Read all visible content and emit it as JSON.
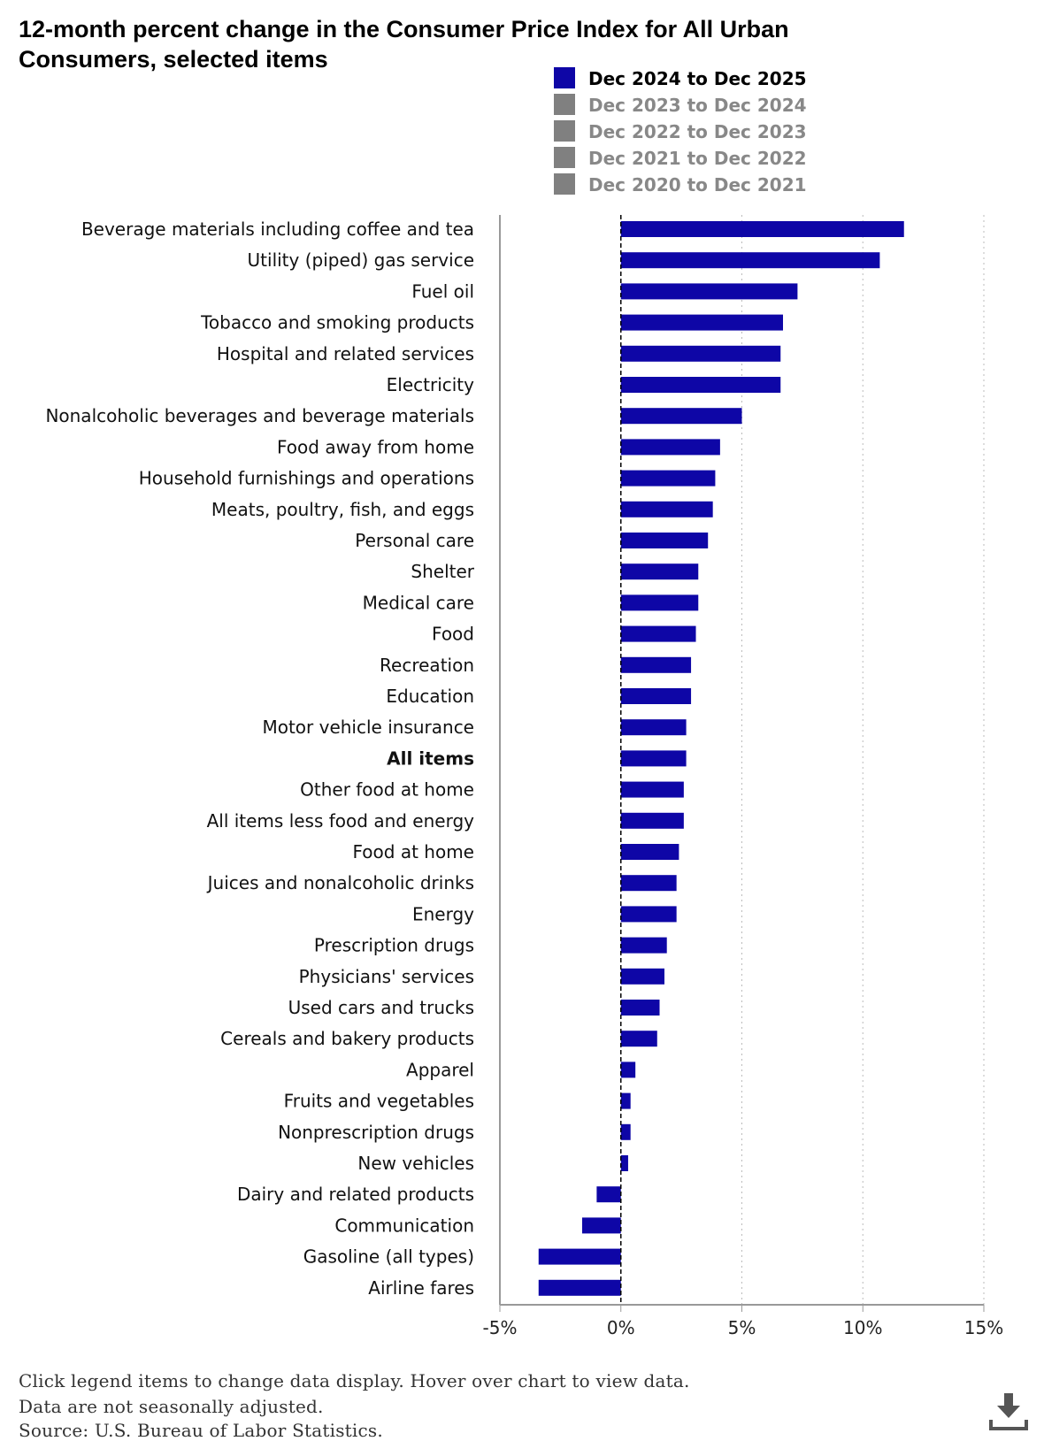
{
  "chart_data": {
    "type": "bar",
    "orientation": "horizontal",
    "title": "12-month percent change in the Consumer Price Index for All Urban Consumers, selected items",
    "legend": {
      "placement": "top-right",
      "items": [
        {
          "label": "Dec 2024 to Dec 2025",
          "color": "#0e06a6",
          "active": true
        },
        {
          "label": "Dec 2023 to Dec 2024",
          "color": "#808080",
          "active": false
        },
        {
          "label": "Dec 2022 to Dec 2023",
          "color": "#808080",
          "active": false
        },
        {
          "label": "Dec 2021 to Dec 2022",
          "color": "#808080",
          "active": false
        },
        {
          "label": "Dec 2020 to Dec 2021",
          "color": "#808080",
          "active": false
        }
      ]
    },
    "categories": [
      "Beverage materials including coffee and tea",
      "Utility (piped) gas service",
      "Fuel oil",
      "Tobacco and smoking products",
      "Hospital and related services",
      "Electricity",
      "Nonalcoholic beverages and beverage materials",
      "Food away from home",
      "Household furnishings and operations",
      "Meats, poultry, fish, and eggs",
      "Personal care",
      "Shelter",
      "Medical care",
      "Food",
      "Recreation",
      "Education",
      "Motor vehicle insurance",
      "All items",
      "Other food at home",
      "All items less food and energy",
      "Food at home",
      "Juices and nonalcoholic drinks",
      "Energy",
      "Prescription drugs",
      "Physicians' services",
      "Used cars and trucks",
      "Cereals and bakery products",
      "Apparel",
      "Fruits and vegetables",
      "Nonprescription drugs",
      "New vehicles",
      "Dairy and related products",
      "Communication",
      "Gasoline (all types)",
      "Airline fares"
    ],
    "bold_category": "All items",
    "series": [
      {
        "name": "Dec 2024 to Dec 2025",
        "values": [
          11.7,
          10.7,
          7.3,
          6.7,
          6.6,
          6.6,
          5.0,
          4.1,
          3.9,
          3.8,
          3.6,
          3.2,
          3.2,
          3.1,
          2.9,
          2.9,
          2.7,
          2.7,
          2.6,
          2.6,
          2.4,
          2.3,
          2.3,
          1.9,
          1.8,
          1.6,
          1.5,
          0.6,
          0.4,
          0.4,
          0.3,
          -1.0,
          -1.6,
          -3.4,
          -3.4
        ]
      }
    ],
    "xlim": [
      -5,
      15
    ],
    "xticks": [
      "-5%",
      "0%",
      "5%",
      "10%",
      "15%"
    ],
    "xtick_values": [
      -5,
      0,
      5,
      10,
      15
    ],
    "grid": "vertical dotted"
  },
  "footer": {
    "instructions": "Click legend items to change data display. Hover over chart to view data.",
    "note": "Data are not seasonally adjusted.",
    "source": "Source: U.S. Bureau of Labor Statistics."
  },
  "icons": {
    "download": "download-icon"
  }
}
